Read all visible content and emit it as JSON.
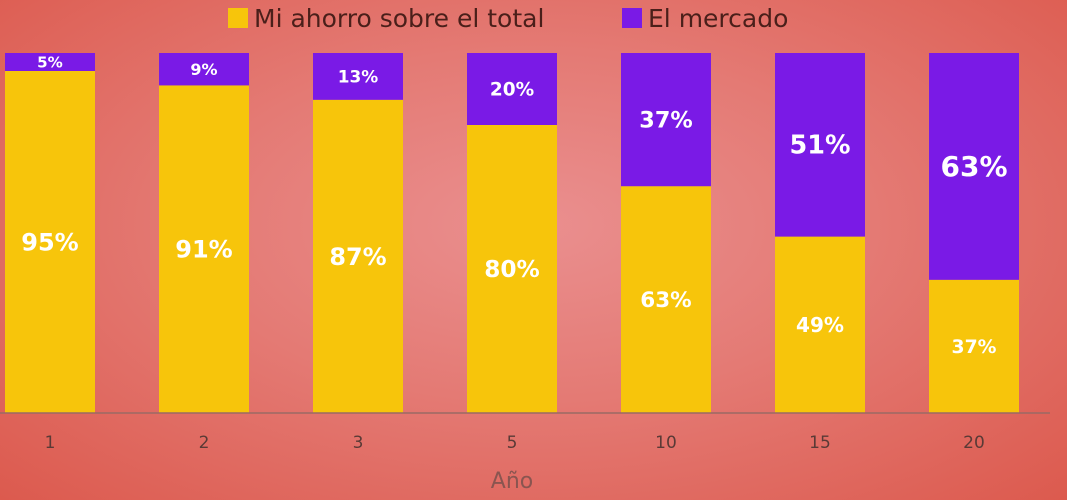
{
  "chart_data": {
    "type": "bar",
    "stacked": true,
    "categories": [
      "1",
      "2",
      "3",
      "5",
      "10",
      "15",
      "20"
    ],
    "series": [
      {
        "name": "Mi ahorro sobre el total",
        "color": "#f7c50b",
        "values": [
          95,
          91,
          87,
          80,
          63,
          49,
          37
        ]
      },
      {
        "name": "El mercado",
        "color": "#7a1ae6",
        "values": [
          5,
          9,
          13,
          20,
          37,
          51,
          63
        ]
      }
    ],
    "data_labels": [
      [
        "95%",
        "91%",
        "87%",
        "80%",
        "63%",
        "49%",
        "37%"
      ],
      [
        "5%",
        "9%",
        "13%",
        "20%",
        "37%",
        "51%",
        "63%"
      ]
    ],
    "xlabel": "Año",
    "ylabel": "",
    "ylim": [
      0,
      100
    ],
    "grid": false,
    "legend_position": "top-center"
  }
}
